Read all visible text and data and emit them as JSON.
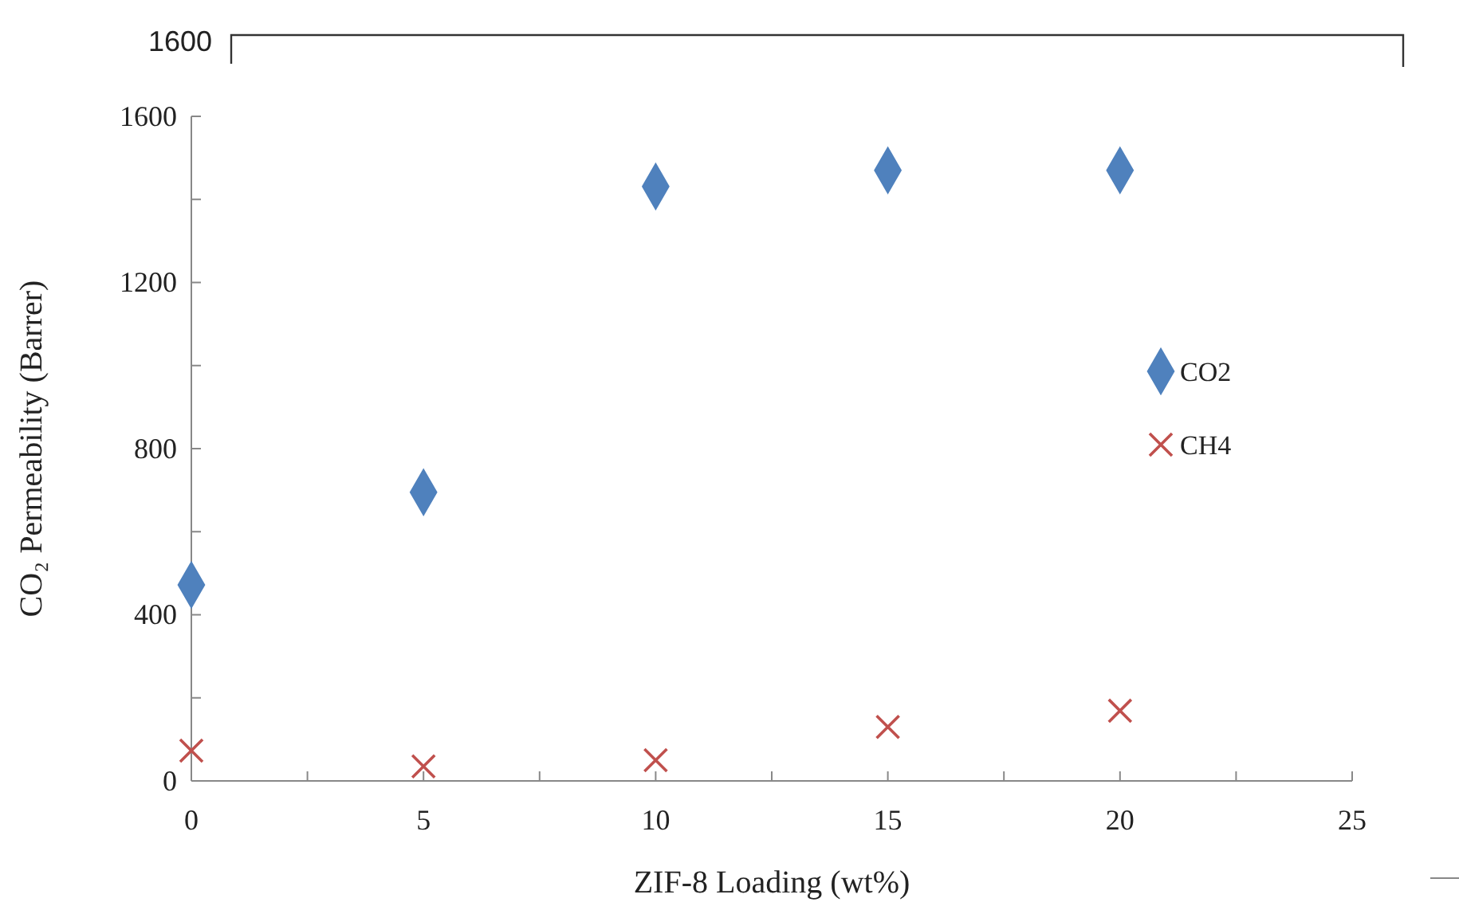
{
  "chart_data": {
    "type": "scatter",
    "xlabel": "ZIF-8 Loading (wt%)",
    "ylabel": "CO₂ Permeability  (Barrer)",
    "x": [
      0,
      5,
      10,
      15,
      20
    ],
    "series": [
      {
        "name": "CO2",
        "color": "#4f81bd",
        "marker": "diamond",
        "values": [
          472,
          695,
          1431,
          1470,
          1470
        ]
      },
      {
        "name": "CH4",
        "color": "#c0504d",
        "marker": "cross",
        "values": [
          73,
          35,
          50,
          130,
          169
        ]
      }
    ],
    "xlim": [
      0,
      25
    ],
    "xticks": [
      0,
      {
        "value": 2.5,
        "label": null
      },
      5,
      {
        "value": 7.5,
        "label": null
      },
      10,
      {
        "value": 12.5,
        "label": null
      },
      15,
      {
        "value": 17.5,
        "label": null
      },
      20,
      {
        "value": 22.5,
        "label": null
      },
      25
    ],
    "ylim": [
      0,
      1600
    ],
    "yticks": [
      0,
      {
        "value": 200,
        "label": null
      },
      400,
      {
        "value": 600,
        "label": null
      },
      800,
      {
        "value": 1000,
        "label": null
      },
      1200,
      {
        "value": 1400,
        "label": null
      },
      1600
    ],
    "grid": false,
    "legend": "right",
    "annotations": [
      "1600"
    ]
  }
}
